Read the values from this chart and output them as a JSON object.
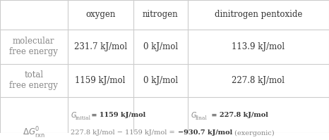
{
  "figsize": [
    4.66,
    1.99
  ],
  "dpi": 100,
  "background_color": "#ffffff",
  "border_color": "#cccccc",
  "col_headers": [
    "oxygen",
    "nitrogen",
    "dinitrogen pentoxide"
  ],
  "row_headers": [
    "molecular\nfree energy",
    "total\nfree energy",
    "",
    "ΔG°ᵣˣⁿ"
  ],
  "data_cells": [
    [
      "231.7 kJ/mol",
      "0 kJ/mol",
      "113.9 kJ/mol"
    ],
    [
      "1159 kJ/mol",
      "0 kJ/mol",
      "227.8 kJ/mol"
    ],
    [
      "G_initial = 1159 kJ/mol",
      "",
      "G_final = 227.8 kJ/mol"
    ],
    [
      "227.8 kJ/mol − 1159 kJ/mol = −930.7 kJ/mol (exergonic)",
      "",
      ""
    ]
  ],
  "text_color": "#888888",
  "dark_text_color": "#333333",
  "header_font_size": 8.5,
  "cell_font_size": 8.5,
  "small_font_size": 7.0
}
